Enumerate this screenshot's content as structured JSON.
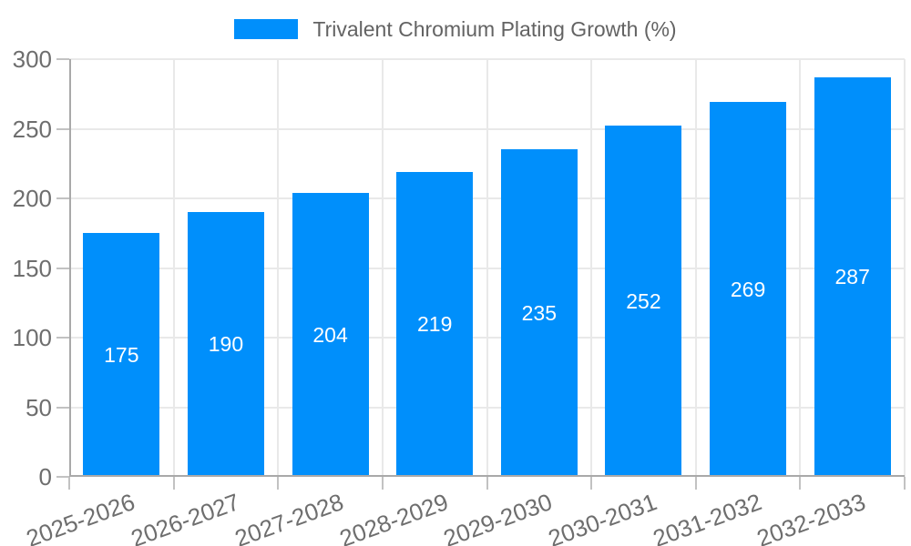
{
  "chart_data": {
    "type": "bar",
    "title": "Trivalent Chromium Plating Growth (%)",
    "categories": [
      "2025-2026",
      "2026-2027",
      "2027-2028",
      "2028-2029",
      "2029-2030",
      "2030-2031",
      "2031-2032",
      "2032-2033"
    ],
    "values": [
      175,
      190,
      204,
      219,
      235,
      252,
      269,
      287
    ],
    "xlabel": "",
    "ylabel": "",
    "ylim": [
      0,
      300
    ],
    "yticks": [
      0,
      50,
      100,
      150,
      200,
      250,
      300
    ],
    "grid": "on",
    "legend_position": "top",
    "bar_color": "#008FFB",
    "value_label_color": "#FFFFFF",
    "grid_color": "#E9E9E9",
    "axis_color": "#A9A9A9",
    "tick_color": "#C2C2C2",
    "axis_label_color": "#6E6E6E",
    "title_color": "#636363"
  }
}
